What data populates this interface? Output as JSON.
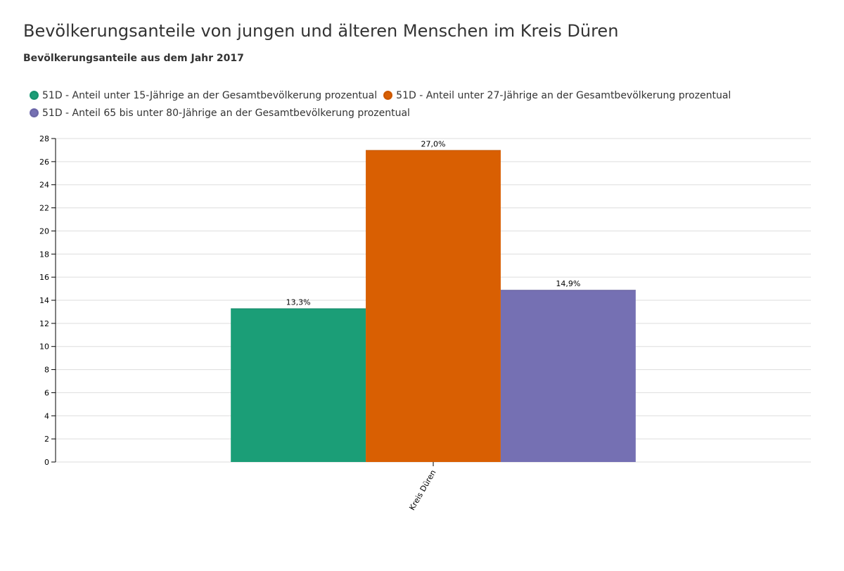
{
  "chart_data": {
    "type": "bar",
    "title": "Bevölkerungsanteile von jungen und älteren Menschen im Kreis Düren",
    "subtitle": "Bevölkerungsanteile aus dem Jahr 2017",
    "categories": [
      "Kreis Düren"
    ],
    "series": [
      {
        "name": "51D - Anteil unter 15-Jährige an der Gesamtbevölkerung prozentual",
        "values": [
          13.3
        ],
        "labels": [
          "13,3%"
        ],
        "color": "#1b9e77"
      },
      {
        "name": "51D - Anteil unter 27-Jährige an der Gesamtbevölkerung prozentual",
        "values": [
          27.0
        ],
        "labels": [
          "27,0%"
        ],
        "color": "#d95f02"
      },
      {
        "name": "51D - Anteil 65 bis unter 80-Jährige an der Gesamtbevölkerung prozentual",
        "values": [
          14.9
        ],
        "labels": [
          "14,9%"
        ],
        "color": "#7570b3"
      }
    ],
    "ylim": [
      0,
      28
    ],
    "yticks": [
      0,
      2,
      4,
      6,
      8,
      10,
      12,
      14,
      16,
      18,
      20,
      22,
      24,
      26,
      28
    ],
    "xlabel": "",
    "ylabel": "",
    "grid": true,
    "legend_position": "top"
  }
}
